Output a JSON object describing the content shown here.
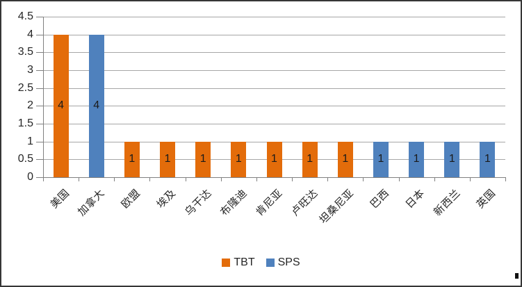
{
  "chart_data": {
    "type": "bar",
    "title": "",
    "categories": [
      "美国",
      "加拿大",
      "欧盟",
      "埃及",
      "乌干达",
      "布隆迪",
      "肯尼亚",
      "卢旺达",
      "坦桑尼亚",
      "巴西",
      "日本",
      "新西兰",
      "英国"
    ],
    "series": [
      {
        "name": "TBT",
        "color": "#E36C0A",
        "values": [
          4,
          null,
          1,
          1,
          1,
          1,
          1,
          1,
          1,
          null,
          null,
          null,
          null
        ]
      },
      {
        "name": "SPS",
        "color": "#4F81BD",
        "values": [
          null,
          4,
          null,
          null,
          null,
          null,
          null,
          null,
          null,
          1,
          1,
          1,
          1
        ]
      }
    ],
    "xlabel": "",
    "ylabel": "",
    "ylim": [
      0,
      4.5
    ],
    "ytick_step": 0.5,
    "ytick_labels": [
      "4.5",
      "4",
      "3.5",
      "3",
      "2.5",
      "2",
      "1.5",
      "1",
      "0.5",
      "0"
    ],
    "grid": true,
    "data_labels_shown": true,
    "legend_position": "bottom",
    "legend_items": [
      {
        "label": "TBT",
        "color": "#E36C0A"
      },
      {
        "label": "SPS",
        "color": "#4F81BD"
      }
    ],
    "colors": {
      "gridline": "#a6a6a6",
      "axis": "#808080",
      "text": "#262626",
      "background": "#ffffff"
    }
  }
}
